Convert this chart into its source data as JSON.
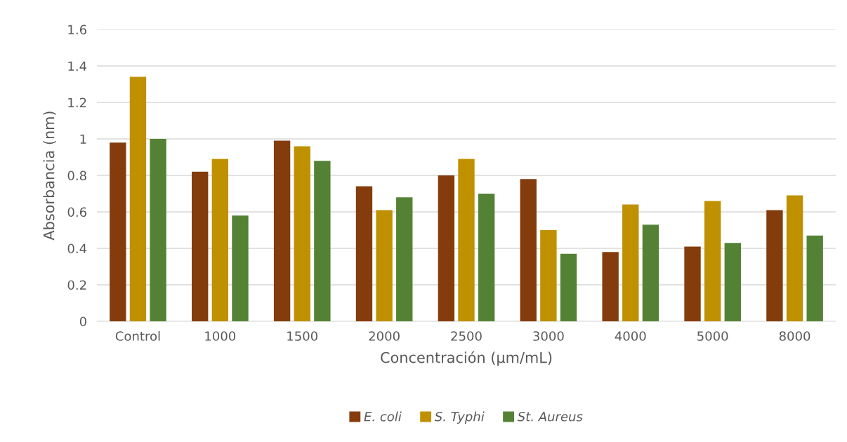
{
  "chart_data": {
    "type": "bar",
    "xlabel": "Concentración (µm/mL)",
    "ylabel": "Absorbancia (nm)",
    "categories": [
      "Control",
      "1000",
      "1500",
      "2000",
      "2500",
      "3000",
      "4000",
      "5000",
      "8000"
    ],
    "series": [
      {
        "name": "E. coli",
        "color": "#843c0c",
        "values": [
          0.98,
          0.82,
          0.99,
          0.74,
          0.8,
          0.78,
          0.38,
          0.41,
          0.61
        ]
      },
      {
        "name": "S. Typhi",
        "color": "#bf9000",
        "values": [
          1.34,
          0.89,
          0.96,
          0.61,
          0.89,
          0.5,
          0.64,
          0.66,
          0.69
        ]
      },
      {
        "name": "St. Aureus",
        "color": "#548235",
        "values": [
          1.0,
          0.58,
          0.88,
          0.68,
          0.7,
          0.37,
          0.53,
          0.43,
          0.47
        ]
      }
    ],
    "ylim": [
      0,
      1.6
    ],
    "yticks": [
      0,
      0.2,
      0.4,
      0.6,
      0.8,
      1,
      1.2,
      1.4,
      1.6
    ],
    "grid": "y",
    "legend": "bottom"
  }
}
